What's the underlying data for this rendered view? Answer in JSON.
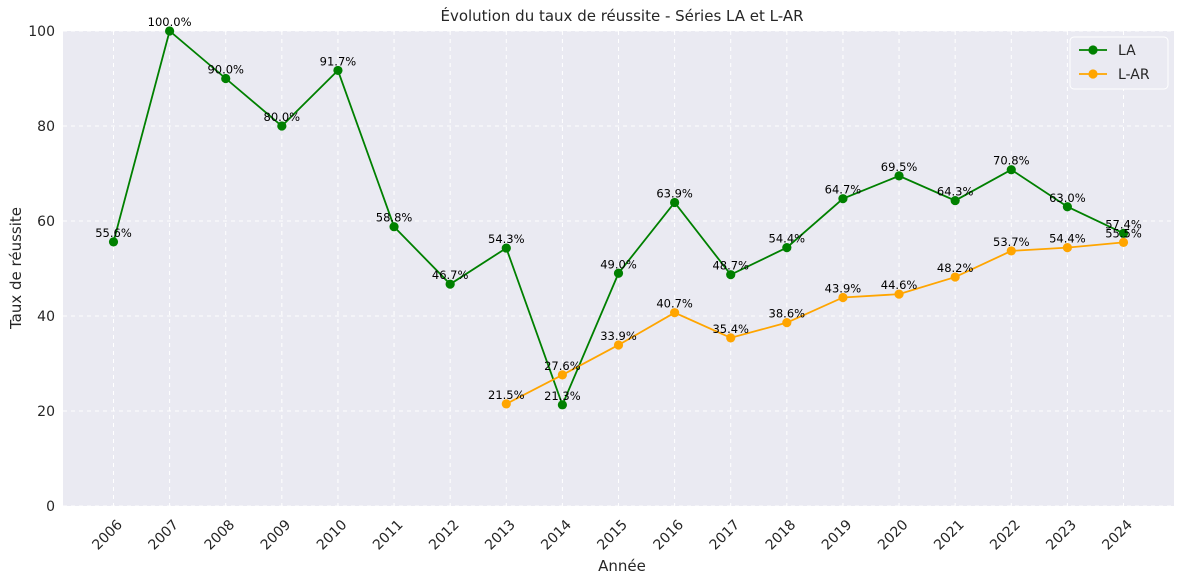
{
  "chart_data": {
    "type": "line",
    "title": "Évolution du taux de réussite - Séries LA et L-AR",
    "xlabel": "Année",
    "ylabel": "Taux de réussite",
    "ylim": [
      0,
      100
    ],
    "yticks": [
      0,
      20,
      40,
      60,
      80,
      100
    ],
    "x": [
      2006,
      2007,
      2008,
      2009,
      2010,
      2011,
      2012,
      2013,
      2014,
      2015,
      2016,
      2017,
      2018,
      2019,
      2020,
      2021,
      2022,
      2023,
      2024
    ],
    "grid": true,
    "legend_position": "top-right",
    "series": [
      {
        "name": "LA",
        "color": "#008000",
        "x": [
          2006,
          2007,
          2008,
          2009,
          2010,
          2011,
          2012,
          2013,
          2014,
          2015,
          2016,
          2017,
          2018,
          2019,
          2020,
          2021,
          2022,
          2023,
          2024
        ],
        "values": [
          55.6,
          100.0,
          90.0,
          80.0,
          91.7,
          58.8,
          46.7,
          54.3,
          21.3,
          49.0,
          63.9,
          48.7,
          54.4,
          64.7,
          69.5,
          64.3,
          70.8,
          63.0,
          57.4
        ],
        "labels": [
          "55.6%",
          "100.0%",
          "90.0%",
          "80.0%",
          "91.7%",
          "58.8%",
          "46.7%",
          "54.3%",
          "21.3%",
          "49.0%",
          "63.9%",
          "48.7%",
          "54.4%",
          "64.7%",
          "69.5%",
          "64.3%",
          "70.8%",
          "63.0%",
          "57.4%"
        ]
      },
      {
        "name": "L-AR",
        "color": "#FFA500",
        "x": [
          2013,
          2014,
          2015,
          2016,
          2017,
          2018,
          2019,
          2020,
          2021,
          2022,
          2023,
          2024
        ],
        "values": [
          21.5,
          27.6,
          33.9,
          40.7,
          35.4,
          38.6,
          43.9,
          44.6,
          48.2,
          53.7,
          54.4,
          55.5
        ],
        "labels": [
          "21.5%",
          "27.6%",
          "33.9%",
          "40.7%",
          "35.4%",
          "38.6%",
          "43.9%",
          "44.6%",
          "48.2%",
          "53.7%",
          "54.4%",
          "55.5%"
        ]
      }
    ]
  }
}
